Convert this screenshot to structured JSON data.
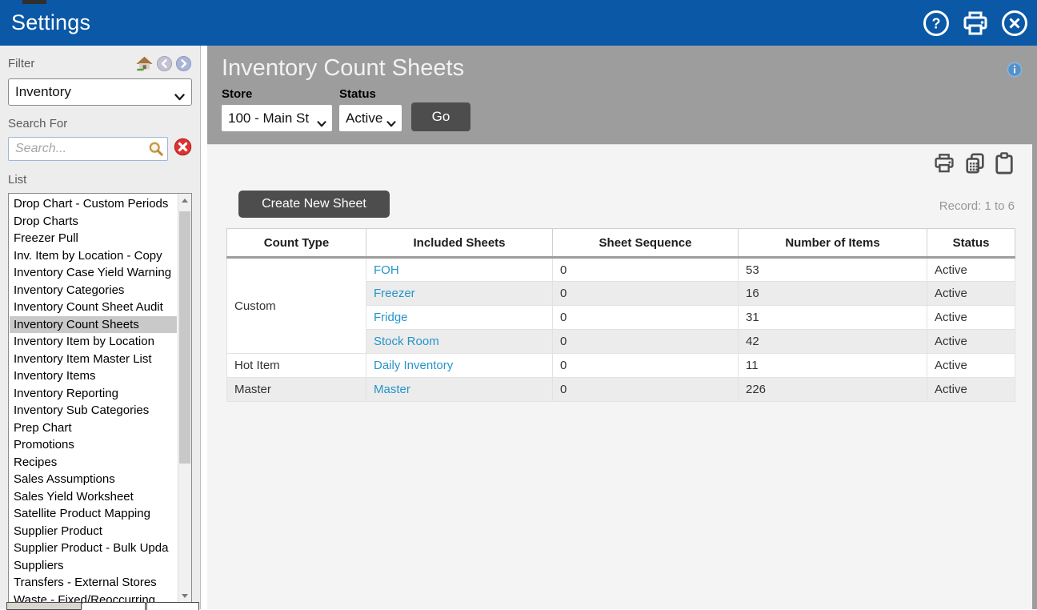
{
  "titlebar": {
    "title": "Settings",
    "icons": [
      "help-icon",
      "print-icon",
      "close-icon"
    ]
  },
  "sidebar": {
    "filter_label": "Filter",
    "filter_icons": [
      "home-icon",
      "back-icon",
      "forward-icon"
    ],
    "filter_value": "Inventory",
    "search_label": "Search For",
    "search_placeholder": "Search...",
    "search_icons": [
      "search-icon",
      "clear-search-icon"
    ],
    "list_label": "List",
    "selected_index": 7,
    "items": [
      "Drop Chart - Custom Periods",
      "Drop Charts",
      "Freezer Pull",
      "Inv. Item by Location - Copy",
      "Inventory Case Yield Warning",
      "Inventory Categories",
      "Inventory Count Sheet Audit",
      "Inventory Count Sheets",
      "Inventory Item by Location",
      "Inventory Item Master List",
      "Inventory Items",
      "Inventory Reporting",
      "Inventory Sub Categories",
      "Prep Chart",
      "Promotions",
      "Recipes",
      "Sales Assumptions",
      "Sales Yield Worksheet",
      "Satellite Product Mapping",
      "Supplier Product",
      "Supplier Product - Bulk Upda",
      "Suppliers",
      "Transfers - External Stores",
      "Waste - Fixed/Reoccurring"
    ]
  },
  "main": {
    "title": "Inventory Count Sheets",
    "info_icon": "info-icon",
    "store_label": "Store",
    "store_value": "100 - Main St",
    "status_label": "Status",
    "status_value": "Active",
    "go_label": "Go",
    "content_icons": [
      "print-icon",
      "copy-grid-icon",
      "clipboard-icon"
    ],
    "create_sheet_label": "Create New Sheet",
    "record_text": "Record: 1 to 6",
    "table": {
      "headers": [
        "Count Type",
        "Included Sheets",
        "Sheet Sequence",
        "Number of Items",
        "Status"
      ],
      "rows": [
        {
          "count_type": "Custom",
          "rowspan": 4,
          "sheet": "FOH",
          "sequence": "0",
          "items": "53",
          "status": "Active"
        },
        {
          "sheet": "Freezer",
          "sequence": "0",
          "items": "16",
          "status": "Active"
        },
        {
          "sheet": "Fridge",
          "sequence": "0",
          "items": "31",
          "status": "Active"
        },
        {
          "sheet": "Stock Room",
          "sequence": "0",
          "items": "42",
          "status": "Active"
        },
        {
          "count_type": "Hot Item",
          "rowspan": 1,
          "sheet": "Daily Inventory",
          "sequence": "0",
          "items": "11",
          "status": "Active"
        },
        {
          "count_type": "Master",
          "rowspan": 1,
          "sheet": "Master",
          "sequence": "0",
          "items": "226",
          "status": "Active"
        }
      ]
    }
  },
  "colors": {
    "accent_blue": "#0a58a6",
    "panel_gray": "#9d9d9d",
    "button_dark": "#4d4d4d",
    "link_blue": "#2595c9",
    "content_bg": "#f4f4f4",
    "sidebar_bg": "#ededed",
    "selected_item_bg": "#c9c9c9"
  }
}
